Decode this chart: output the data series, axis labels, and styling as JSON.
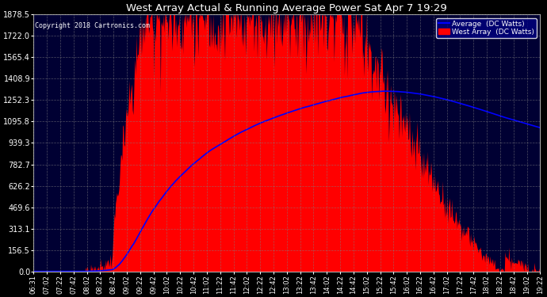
{
  "title": "West Array Actual & Running Average Power Sat Apr 7 19:29",
  "copyright": "Copyright 2018 Cartronics.com",
  "legend_avg": "Average  (DC Watts)",
  "legend_west": "West Array  (DC Watts)",
  "bg_color": "#000000",
  "plot_bg_color": "#000033",
  "grid_color": "#808080",
  "red_color": "#ff0000",
  "blue_color": "#0000ff",
  "title_color": "#ffffff",
  "ytick_color": "#ffffff",
  "xtick_color": "#ffffff",
  "copyright_color": "#ffffff",
  "ymax": 1878.5,
  "ymin": 0.0,
  "yticks": [
    0.0,
    156.5,
    313.1,
    469.6,
    626.2,
    782.7,
    939.3,
    1095.8,
    1252.3,
    1408.9,
    1565.4,
    1722.0,
    1878.5
  ],
  "xtick_labels": [
    "06:31",
    "07:02",
    "07:22",
    "07:42",
    "08:02",
    "08:22",
    "08:42",
    "09:02",
    "09:22",
    "09:42",
    "10:02",
    "10:22",
    "10:42",
    "11:02",
    "11:22",
    "11:42",
    "12:02",
    "12:22",
    "12:42",
    "13:02",
    "13:22",
    "13:42",
    "14:02",
    "14:22",
    "14:42",
    "15:02",
    "15:22",
    "15:42",
    "16:02",
    "16:22",
    "16:42",
    "17:02",
    "17:22",
    "17:42",
    "18:02",
    "18:22",
    "18:42",
    "19:02",
    "19:22"
  ],
  "n_points": 780
}
